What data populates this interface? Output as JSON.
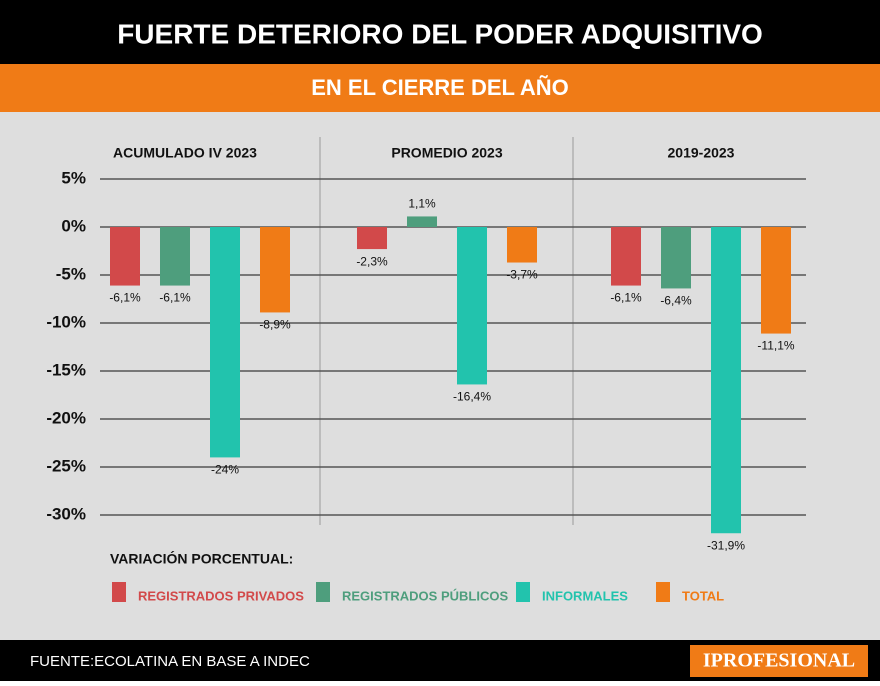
{
  "chart_data": {
    "type": "bar",
    "title": "FUERTE DETERIORO DEL PODER ADQUISITIVO",
    "subtitle": "EN EL CIERRE DEL AÑO",
    "categories": [
      "ACUMULADO IV 2023",
      "PROMEDIO 2023",
      "2019-2023"
    ],
    "series": [
      {
        "name": "REGISTRADOS PRIVADOS",
        "color": "#d2494a",
        "values": [
          -6.1,
          -2.3,
          -6.1
        ],
        "value_labels": [
          "-6,1%",
          "-2,3%",
          "-6,1%"
        ]
      },
      {
        "name": "REGISTRADOS PÚBLICOS",
        "color": "#4e9e7d",
        "values": [
          -6.1,
          1.1,
          -6.4
        ],
        "value_labels": [
          "-6,1%",
          "1,1%",
          "-6,4%"
        ]
      },
      {
        "name": "INFORMALES",
        "color": "#22c3ad",
        "values": [
          -24,
          -16.4,
          -31.9
        ],
        "value_labels": [
          "-24%",
          "-16,4%",
          "-31,9%"
        ]
      },
      {
        "name": "TOTAL",
        "color": "#f07b16",
        "values": [
          -8.9,
          -3.7,
          -11.1
        ],
        "value_labels": [
          "-8,9%",
          "-3,7%",
          "-11,1%"
        ]
      }
    ],
    "legend_title": "VARIACIÓN PORCENTUAL:",
    "ylim": [
      -33,
      5
    ],
    "yticks": [
      {
        "value": 5,
        "label": "5%"
      },
      {
        "value": 0,
        "label": "0%"
      },
      {
        "value": -5,
        "label": "-5%"
      },
      {
        "value": -10,
        "label": "-10%"
      },
      {
        "value": -15,
        "label": "-15%"
      },
      {
        "value": -20,
        "label": "-20%"
      },
      {
        "value": -25,
        "label": "-25%"
      },
      {
        "value": -30,
        "label": "-30%"
      }
    ],
    "grid": true,
    "source": "FUENTE:ECOLATINA EN BASE A INDEC",
    "logo": "IPROFESIONAL"
  }
}
